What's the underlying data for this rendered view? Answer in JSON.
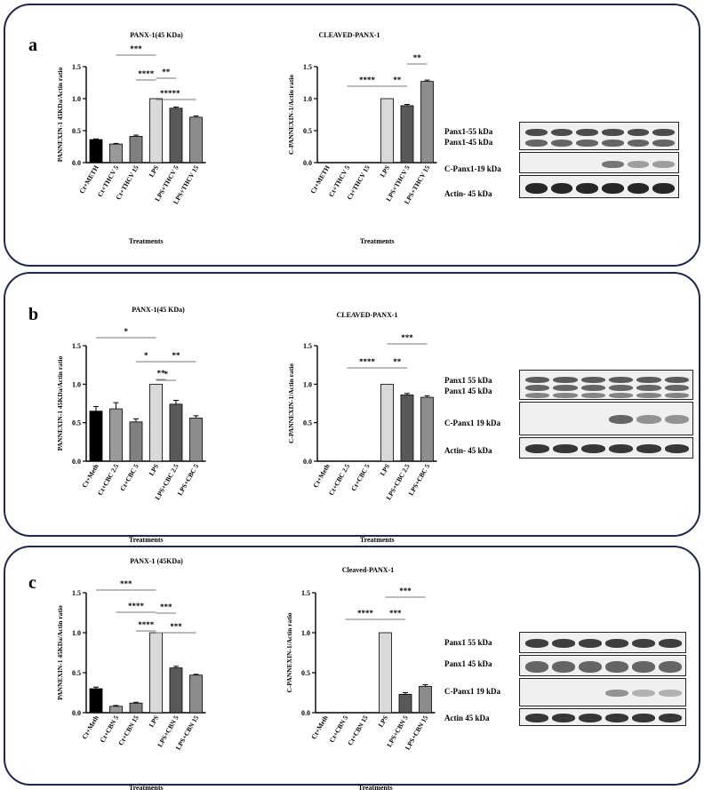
{
  "panels": [
    {
      "letter": "a",
      "chart_data": [
        {
          "type": "bar",
          "title": "PANX-1(45 KDa)",
          "xlabel": "Treatments",
          "ylabel": "PANNEXIN-1 45KDa/Actin ratio",
          "ylim": [
            0,
            1.5
          ],
          "yticks": [
            "0.0",
            "0.5",
            "1.0",
            "1.5"
          ],
          "categories": [
            "Ct+METH",
            "Ct+THCV 5",
            "Ct+THCV 15",
            "LPS",
            "LPS+THCV 5",
            "LPS+THCV 15"
          ],
          "values": [
            0.36,
            0.29,
            0.41,
            1.0,
            0.85,
            0.71
          ],
          "errors": [
            0.01,
            0.01,
            0.02,
            0.0,
            0.02,
            0.02
          ],
          "colors": [
            "#000000",
            "#999999",
            "#808080",
            "#d9d9d9",
            "#595959",
            "#8c8c8c"
          ],
          "brackets": [
            {
              "from": 1,
              "to": 3,
              "label": "***"
            },
            {
              "from": 2,
              "to": 3,
              "label": "****"
            },
            {
              "from": 3,
              "to": 4,
              "label": "**"
            },
            {
              "from": 3,
              "to": 4,
              "label": "***"
            },
            {
              "from": 3,
              "to": 5,
              "label": "**"
            }
          ]
        },
        {
          "type": "bar",
          "title": "CLEAVED-PANX-1",
          "xlabel": "Treatments",
          "ylabel": "C-PANNEXIN-1/Actin ratio",
          "ylim": [
            0,
            1.5
          ],
          "yticks": [
            "0.0",
            "0.5",
            "1.0",
            "1.5"
          ],
          "categories": [
            "Ct+METH",
            "Ct+THCV 5",
            "Ct+THCV 15",
            "LPS",
            "LPS+THCV 5",
            "LPS+THCV 15"
          ],
          "values": [
            0,
            0,
            0,
            1.0,
            0.89,
            1.27
          ],
          "errors": [
            0,
            0,
            0,
            0.0,
            0.02,
            0.02
          ],
          "colors": [
            "#000000",
            "#999999",
            "#808080",
            "#d9d9d9",
            "#595959",
            "#8c8c8c"
          ],
          "brackets": [
            {
              "from": 4,
              "to": 5,
              "label": "**"
            },
            {
              "from": 1,
              "to": 3,
              "label": "****"
            },
            {
              "from": 3,
              "to": 4,
              "label": "**"
            }
          ]
        }
      ],
      "blot": {
        "labels": [
          "Panx1-55 kDa",
          "Panx1-45 kDa",
          "C-Panx1-19 kDa",
          "Actin- 45 kDa"
        ]
      }
    },
    {
      "letter": "b",
      "chart_data": [
        {
          "type": "bar",
          "title": "PANX-1(45 KDa)",
          "xlabel": "Treatments",
          "ylabel": "PANNEXIN-1 45KDa/Actin ratio",
          "ylim": [
            0,
            1.5
          ],
          "yticks": [
            "0.0",
            "0.5",
            "1.0",
            "1.5"
          ],
          "categories": [
            "Ct+Meth",
            "Ct+CBC 2.5",
            "Ct+CBC 5",
            "LPS",
            "LPS+CBC 2.5",
            "LPS+CBC 5"
          ],
          "values": [
            0.65,
            0.68,
            0.51,
            1.0,
            0.74,
            0.56
          ],
          "errors": [
            0.06,
            0.08,
            0.04,
            0.0,
            0.05,
            0.03
          ],
          "colors": [
            "#000000",
            "#999999",
            "#808080",
            "#d9d9d9",
            "#595959",
            "#8c8c8c"
          ],
          "brackets": [
            {
              "from": 0,
              "to": 3,
              "label": "*"
            },
            {
              "from": 2,
              "to": 3,
              "label": "*"
            },
            {
              "from": 3,
              "to": 5,
              "label": "**"
            },
            {
              "from": 3,
              "to": 3.5,
              "label": "**"
            },
            {
              "from": 3,
              "to": 4,
              "label": "*"
            }
          ]
        },
        {
          "type": "bar",
          "title": "CLEAVED-PANX-1",
          "xlabel": "Treatments",
          "ylabel": "C-PANNEXIN-1/Actin ratio",
          "ylim": [
            0,
            1.5
          ],
          "yticks": [
            "0.0",
            "0.5",
            "1.0",
            "1.5"
          ],
          "categories": [
            "Ct+Meth",
            "Ct+CBC 2.5",
            "Ct+CBC 5",
            "LPS",
            "LPS+CBC 2.5",
            "LPS+CBC 5"
          ],
          "values": [
            0,
            0,
            0,
            1.0,
            0.86,
            0.83
          ],
          "errors": [
            0,
            0,
            0,
            0.0,
            0.02,
            0.02
          ],
          "colors": [
            "#000000",
            "#999999",
            "#808080",
            "#d9d9d9",
            "#595959",
            "#8c8c8c"
          ],
          "brackets": [
            {
              "from": 3,
              "to": 5,
              "label": "***"
            },
            {
              "from": 1,
              "to": 3,
              "label": "****"
            },
            {
              "from": 3,
              "to": 4,
              "label": "**"
            }
          ]
        }
      ],
      "blot": {
        "labels": [
          "Panx1 55 kDa",
          "Panx1 45 kDa",
          "C-Panx1 19 kDa",
          "Actin- 45 kDa"
        ]
      }
    },
    {
      "letter": "c",
      "chart_data": [
        {
          "type": "bar",
          "title": "PANX-1 (45KDa)",
          "xlabel": "Treatments",
          "ylabel": "PANNEXIN-1 45KDa/Actin ratio",
          "ylim": [
            0,
            1.5
          ],
          "yticks": [
            "0.0",
            "0.5",
            "1.0",
            "1.5"
          ],
          "categories": [
            "Ct+Meth",
            "Ct+CBN 5",
            "Ct+CBN 15",
            "LPS",
            "LPS+CBN 5",
            "LPS+CBN 15"
          ],
          "values": [
            0.3,
            0.08,
            0.12,
            1.0,
            0.56,
            0.47
          ],
          "errors": [
            0.02,
            0.01,
            0.01,
            0.0,
            0.02,
            0.01
          ],
          "colors": [
            "#000000",
            "#999999",
            "#808080",
            "#d9d9d9",
            "#595959",
            "#8c8c8c"
          ],
          "brackets": [
            {
              "from": 0,
              "to": 3,
              "label": "***"
            },
            {
              "from": 1,
              "to": 3,
              "label": "****"
            },
            {
              "from": 3,
              "to": 4,
              "label": "***"
            },
            {
              "from": 2,
              "to": 3,
              "label": "****"
            },
            {
              "from": 3,
              "to": 5,
              "label": "***"
            }
          ]
        },
        {
          "type": "bar",
          "title": "Cleaved-PANX-1",
          "xlabel": "Treatments",
          "ylabel": "C-PANNEXIN-1/Actin ratio",
          "ylim": [
            0,
            1.5
          ],
          "yticks": [
            "0.0",
            "0.5",
            "1.0",
            "1.5"
          ],
          "categories": [
            "Ct+Meth",
            "Ct+CBN 5",
            "Ct+CBN 15",
            "LPS",
            "LPS+CBN 5",
            "LPS+CBN 15"
          ],
          "values": [
            0,
            0,
            0,
            1.0,
            0.23,
            0.33
          ],
          "errors": [
            0,
            0,
            0,
            0.0,
            0.02,
            0.02
          ],
          "colors": [
            "#000000",
            "#999999",
            "#808080",
            "#d9d9d9",
            "#595959",
            "#8c8c8c"
          ],
          "brackets": [
            {
              "from": 3,
              "to": 5,
              "label": "***"
            },
            {
              "from": 1,
              "to": 3,
              "label": "****"
            },
            {
              "from": 3,
              "to": 4,
              "label": "***"
            }
          ]
        }
      ],
      "blot": {
        "labels": [
          "Panx1 55 kDa",
          "Panx1 45 kDa",
          "C-Panx1 19 kDa",
          "Actin 45 kDa"
        ]
      }
    }
  ]
}
